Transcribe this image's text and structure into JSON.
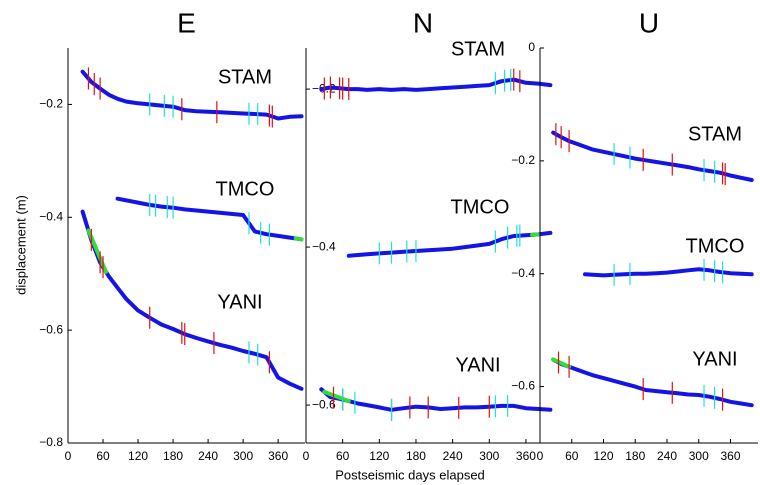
{
  "chart_data": [
    {
      "type": "line",
      "title": "E",
      "ylabel": "displacement (m)",
      "xlim": [
        0,
        406
      ],
      "xticks": [
        0,
        60,
        120,
        180,
        240,
        300,
        360
      ],
      "ylim": [
        -0.8,
        -0.1
      ],
      "yticks": [
        {
          "value": -0.8,
          "label": "−0.8"
        },
        {
          "value": -0.6,
          "label": "−0.6"
        },
        {
          "value": -0.4,
          "label": "−0.4"
        },
        {
          "value": -0.2,
          "label": "−0.2"
        }
      ],
      "x": [
        25,
        40,
        55,
        70,
        85,
        100,
        120,
        140,
        160,
        180,
        200,
        220,
        240,
        260,
        280,
        300,
        320,
        340,
        360,
        380,
        400
      ],
      "series": [
        {
          "name": "STAM",
          "color": "#1414e6",
          "values": [
            -0.142,
            -0.16,
            -0.172,
            -0.183,
            -0.19,
            -0.195,
            -0.198,
            -0.2,
            -0.202,
            -0.204,
            -0.21,
            -0.212,
            -0.213,
            -0.214,
            -0.215,
            -0.216,
            -0.217,
            -0.218,
            -0.225,
            -0.222,
            -0.221
          ],
          "markers": [
            {
              "color": "#e01010",
              "x": [
                35,
                45,
                55,
                195,
                255,
                345,
                350
              ]
            },
            {
              "color": "#20e0e0",
              "x": [
                140,
                165,
                180,
                310,
                325
              ]
            }
          ]
        },
        {
          "name": "TMCO",
          "color": "#1414e6",
          "values": [
            null,
            null,
            null,
            null,
            -0.367,
            -0.37,
            -0.374,
            -0.378,
            -0.381,
            -0.383,
            -0.386,
            -0.388,
            -0.39,
            -0.392,
            -0.394,
            -0.396,
            -0.425,
            -0.43,
            -0.433,
            -0.436,
            -0.439
          ],
          "markers": [
            {
              "color": "#20e0e0",
              "x": [
                140,
                150,
                170,
                180,
                310,
                330,
                345
              ]
            }
          ],
          "highlight": {
            "color": "#33dd33",
            "x": [
              390,
              400
            ]
          }
        },
        {
          "name": "YANI",
          "color": "#1414e6",
          "values": [
            -0.39,
            -0.44,
            -0.48,
            -0.505,
            -0.525,
            -0.545,
            -0.565,
            -0.578,
            -0.59,
            -0.598,
            -0.607,
            -0.614,
            -0.62,
            -0.626,
            -0.631,
            -0.637,
            -0.642,
            -0.648,
            -0.684,
            -0.695,
            -0.704
          ],
          "markers": [
            {
              "color": "#e01010",
              "x": [
                40,
                55,
                60,
                140,
                195,
                200,
                250,
                345
              ]
            },
            {
              "color": "#20e0e0",
              "x": [
                310,
                325
              ]
            }
          ],
          "highlight": {
            "color": "#33dd33",
            "x": [
              35,
              65
            ]
          }
        }
      ]
    },
    {
      "type": "line",
      "title": "N",
      "xlabel": "Postseismic days elapsed",
      "xlim": [
        0,
        383
      ],
      "xticks": [
        0,
        60,
        120,
        180,
        240,
        300,
        360
      ],
      "ylim": [
        -0.648,
        -0.148
      ],
      "yticks": [
        {
          "value": -0.6,
          "label": "−0.6"
        },
        {
          "value": -0.4,
          "label": "−0.4"
        },
        {
          "value": -0.2,
          "label": "−0.2"
        }
      ],
      "x": [
        25,
        40,
        55,
        70,
        85,
        100,
        120,
        140,
        160,
        180,
        200,
        220,
        240,
        260,
        280,
        300,
        320,
        340,
        360,
        380,
        400
      ],
      "series": [
        {
          "name": "STAM",
          "color": "#1414e6",
          "values": [
            -0.2,
            -0.198,
            -0.199,
            -0.2,
            -0.2,
            -0.201,
            -0.2,
            -0.201,
            -0.2,
            -0.201,
            -0.2,
            -0.199,
            -0.198,
            -0.197,
            -0.196,
            -0.195,
            -0.19,
            -0.188,
            -0.192,
            -0.193,
            -0.195
          ],
          "markers": [
            {
              "color": "#e01010",
              "x": [
                30,
                40,
                55,
                60,
                70,
                340,
                350
              ]
            },
            {
              "color": "#20e0e0",
              "x": [
                310,
                325,
                335
              ]
            }
          ]
        },
        {
          "name": "TMCO",
          "color": "#1414e6",
          "values": [
            null,
            null,
            null,
            -0.411,
            -0.41,
            -0.409,
            -0.408,
            -0.407,
            -0.406,
            -0.405,
            -0.404,
            -0.403,
            -0.402,
            -0.4,
            -0.398,
            -0.396,
            -0.39,
            -0.386,
            -0.385,
            -0.384,
            -0.382
          ],
          "markers": [
            {
              "color": "#20e0e0",
              "x": [
                120,
                140,
                165,
                180,
                310,
                330,
                345,
                350
              ]
            }
          ],
          "highlight": {
            "color": "#33dd33",
            "x": [
              370,
              380
            ]
          }
        },
        {
          "name": "YANI",
          "color": "#1414e6",
          "values": [
            -0.58,
            -0.59,
            -0.592,
            -0.595,
            -0.598,
            -0.6,
            -0.603,
            -0.606,
            -0.604,
            -0.602,
            -0.603,
            -0.605,
            -0.604,
            -0.603,
            -0.603,
            -0.602,
            -0.601,
            -0.601,
            -0.604,
            -0.605,
            -0.606
          ],
          "markers": [
            {
              "color": "#e01010",
              "x": [
                45,
                60,
                140,
                170,
                200,
                250,
                300
              ]
            },
            {
              "color": "#20e0e0",
              "x": [
                60,
                80,
                140,
                310,
                330
              ]
            }
          ],
          "highlight": {
            "color": "#33dd33",
            "x": [
              30,
              70
            ]
          }
        }
      ]
    },
    {
      "type": "line",
      "title": "U",
      "xlim": [
        0,
        412
      ],
      "xticks": [
        0,
        60,
        120,
        180,
        240,
        300,
        360
      ],
      "ylim": [
        -0.7,
        0
      ],
      "yticks": [
        {
          "value": -0.6,
          "label": "−0.6"
        },
        {
          "value": -0.4,
          "label": "−0.4"
        },
        {
          "value": -0.2,
          "label": "−0.2"
        },
        0
      ],
      "x": [
        25,
        40,
        55,
        70,
        85,
        100,
        120,
        140,
        160,
        180,
        200,
        220,
        240,
        260,
        280,
        300,
        320,
        340,
        360,
        380,
        400
      ],
      "series": [
        {
          "name": "STAM",
          "color": "#1414e6",
          "values": [
            -0.15,
            -0.158,
            -0.165,
            -0.17,
            -0.175,
            -0.18,
            -0.184,
            -0.188,
            -0.192,
            -0.196,
            -0.199,
            -0.202,
            -0.205,
            -0.208,
            -0.211,
            -0.215,
            -0.218,
            -0.221,
            -0.226,
            -0.23,
            -0.234
          ],
          "markers": [
            {
              "color": "#e01010",
              "x": [
                30,
                40,
                55,
                195,
                250,
                345,
                350
              ]
            },
            {
              "color": "#20e0e0",
              "x": [
                140,
                170,
                310,
                330
              ]
            }
          ]
        },
        {
          "name": "TMCO",
          "color": "#1414e6",
          "values": [
            null,
            null,
            null,
            null,
            -0.401,
            -0.402,
            -0.403,
            -0.402,
            -0.401,
            -0.4,
            -0.4,
            -0.399,
            -0.398,
            -0.396,
            -0.394,
            -0.392,
            -0.394,
            -0.397,
            -0.399,
            -0.4,
            -0.401
          ],
          "markers": [
            {
              "color": "#20e0e0",
              "x": [
                140,
                170,
                310,
                330,
                345
              ]
            }
          ]
        },
        {
          "name": "YANI",
          "color": "#1414e6",
          "values": [
            -0.552,
            -0.56,
            -0.565,
            -0.57,
            -0.575,
            -0.58,
            -0.585,
            -0.59,
            -0.595,
            -0.6,
            -0.606,
            -0.608,
            -0.61,
            -0.612,
            -0.614,
            -0.615,
            -0.618,
            -0.622,
            -0.627,
            -0.63,
            -0.633
          ],
          "markers": [
            {
              "color": "#e01010",
              "x": [
                35,
                55,
                195,
                250,
                345
              ]
            },
            {
              "color": "#20e0e0",
              "x": [
                310,
                330
              ]
            }
          ],
          "highlight": {
            "color": "#33dd33",
            "x": [
              25,
              55
            ]
          }
        }
      ]
    }
  ]
}
